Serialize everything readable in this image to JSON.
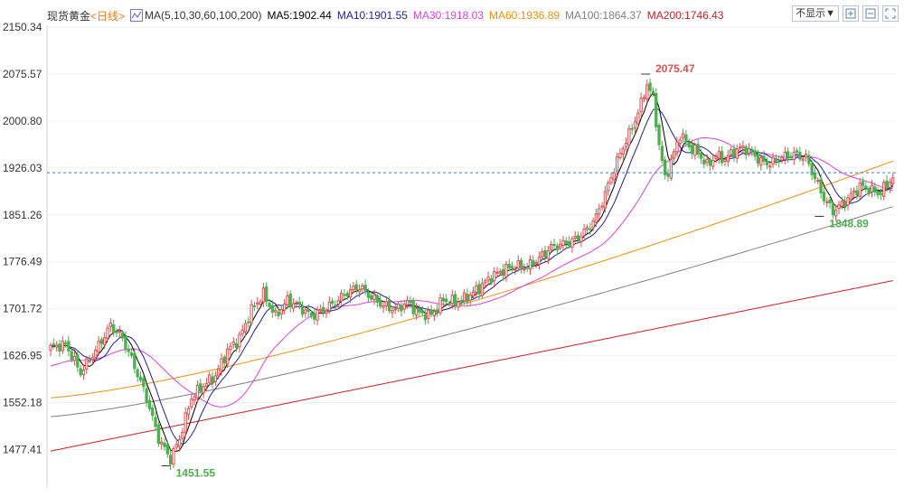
{
  "legend": {
    "instrument": "现货黄金",
    "period": "<日线>",
    "ma_label": "MA(5,10,30,60,100,200)",
    "ma5": "MA5:1902.44",
    "ma10": "MA10:1901.55",
    "ma30": "MA30:1918.03",
    "ma60": "MA60:1936.89",
    "ma100": "MA100:1864.37",
    "ma200": "MA200:1746.43"
  },
  "toolbar": {
    "hide_label": "不显示▼"
  },
  "colors": {
    "up": "#e05050",
    "down": "#4caf50",
    "ma5": "#000000",
    "ma10": "#1f1f9e",
    "ma30": "#e040e0",
    "ma60": "#f0900a",
    "ma100": "#808080",
    "ma200": "#d02020",
    "current_line": "#3a7bd5"
  },
  "chart_data": {
    "type": "candlestick",
    "ylim": [
      1440,
      2160
    ],
    "yticks": [
      "2150.34",
      "2075.57",
      "2000.80",
      "1926.03",
      "1851.26",
      "1776.49",
      "1701.72",
      "1626.95",
      "1552.18",
      "1477.41"
    ],
    "current_price": 1918.5,
    "annotations": [
      {
        "label": "2075.47",
        "value": 2075.47,
        "type": "high"
      },
      {
        "label": "1451.55",
        "value": 1451.55,
        "type": "low"
      },
      {
        "label": "1848.89",
        "value": 1848.89,
        "type": "low"
      }
    ],
    "anchors": [
      [
        0,
        1640
      ],
      [
        5,
        1645
      ],
      [
        10,
        1600
      ],
      [
        15,
        1635
      ],
      [
        20,
        1675
      ],
      [
        24,
        1655
      ],
      [
        28,
        1610
      ],
      [
        32,
        1560
      ],
      [
        36,
        1495
      ],
      [
        40,
        1462
      ],
      [
        43,
        1495
      ],
      [
        47,
        1560
      ],
      [
        51,
        1580
      ],
      [
        55,
        1595
      ],
      [
        59,
        1635
      ],
      [
        63,
        1655
      ],
      [
        67,
        1700
      ],
      [
        71,
        1725
      ],
      [
        75,
        1690
      ],
      [
        79,
        1715
      ],
      [
        83,
        1705
      ],
      [
        87,
        1690
      ],
      [
        91,
        1700
      ],
      [
        95,
        1712
      ],
      [
        99,
        1728
      ],
      [
        103,
        1737
      ],
      [
        107,
        1720
      ],
      [
        111,
        1707
      ],
      [
        115,
        1700
      ],
      [
        119,
        1712
      ],
      [
        123,
        1694
      ],
      [
        127,
        1692
      ],
      [
        131,
        1716
      ],
      [
        135,
        1712
      ],
      [
        139,
        1720
      ],
      [
        143,
        1735
      ],
      [
        147,
        1753
      ],
      [
        151,
        1763
      ],
      [
        155,
        1770
      ],
      [
        159,
        1768
      ],
      [
        163,
        1782
      ],
      [
        167,
        1800
      ],
      [
        171,
        1805
      ],
      [
        175,
        1812
      ],
      [
        179,
        1828
      ],
      [
        182,
        1848
      ],
      [
        185,
        1885
      ],
      [
        188,
        1925
      ],
      [
        191,
        1960
      ],
      [
        194,
        1990
      ],
      [
        197,
        2028
      ],
      [
        199,
        2060
      ],
      [
        201,
        2038
      ],
      [
        203,
        1962
      ],
      [
        205,
        1910
      ],
      [
        207,
        1935
      ],
      [
        210,
        1980
      ],
      [
        213,
        1960
      ],
      [
        216,
        1950
      ],
      [
        219,
        1930
      ],
      [
        222,
        1945
      ],
      [
        225,
        1940
      ],
      [
        228,
        1953
      ],
      [
        231,
        1958
      ],
      [
        234,
        1950
      ],
      [
        237,
        1936
      ],
      [
        240,
        1933
      ],
      [
        244,
        1943
      ],
      [
        248,
        1948
      ],
      [
        252,
        1942
      ],
      [
        255,
        1910
      ],
      [
        258,
        1878
      ],
      [
        261,
        1857
      ],
      [
        264,
        1868
      ],
      [
        267,
        1882
      ],
      [
        270,
        1897
      ],
      [
        273,
        1893
      ],
      [
        276,
        1885
      ],
      [
        279,
        1898
      ],
      [
        281,
        1913
      ]
    ]
  }
}
